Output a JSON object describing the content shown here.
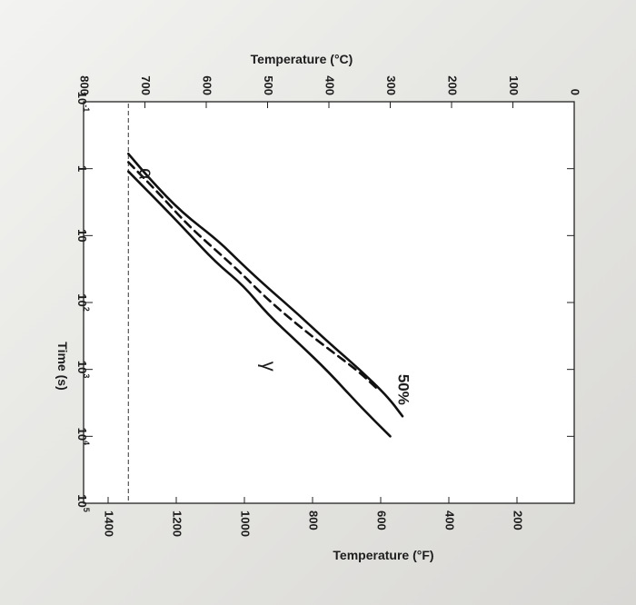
{
  "chart_data": {
    "type": "line",
    "title": "",
    "orientation": "rotated-90-clockwise",
    "xlabel": "Time (s)",
    "x_scale": "log",
    "xlim": [
      0.1,
      100000
    ],
    "x_ticks": [
      {
        "value": 0.1,
        "base": "10",
        "exp": "-1"
      },
      {
        "value": 1,
        "base": "1",
        "exp": ""
      },
      {
        "value": 10,
        "base": "10",
        "exp": ""
      },
      {
        "value": 100,
        "base": "10",
        "exp": "2"
      },
      {
        "value": 1000,
        "base": "10",
        "exp": "3"
      },
      {
        "value": 10000,
        "base": "10",
        "exp": "4"
      },
      {
        "value": 100000,
        "base": "10",
        "exp": "5"
      }
    ],
    "ylabel_left": "Temperature (°C)",
    "ylim_c": [
      0,
      800
    ],
    "y_ticks_c": [
      "0",
      "100",
      "200",
      "300",
      "400",
      "500",
      "600",
      "700",
      "800"
    ],
    "ylabel_right": "Temperature (°F)",
    "y_ticks_f": [
      "200",
      "400",
      "600",
      "800",
      "1000",
      "1200",
      "1400"
    ],
    "eutectoid_temperature_c": 727,
    "region_labels": [
      "α",
      "γ"
    ],
    "annotation": "50%",
    "series": [
      {
        "style": "solid",
        "points": [
          [
            0.6,
            727
          ],
          [
            1.5,
            690
          ],
          [
            4.5,
            640
          ],
          [
            12,
            580
          ],
          [
            25,
            545
          ],
          [
            60,
            500
          ],
          [
            150,
            450
          ],
          [
            400,
            400
          ],
          [
            1000,
            350
          ],
          [
            2500,
            305
          ],
          [
            5000,
            280
          ]
        ]
      },
      {
        "style": "dashed",
        "points": [
          [
            0.8,
            727
          ],
          [
            2.2,
            680
          ],
          [
            7,
            630
          ],
          [
            18,
            580
          ],
          [
            35,
            545
          ],
          [
            90,
            500
          ],
          [
            220,
            450
          ],
          [
            500,
            400
          ],
          [
            1100,
            350
          ],
          [
            2000,
            320
          ]
        ]
      },
      {
        "style": "solid",
        "points": [
          [
            1.1,
            727
          ],
          [
            3,
            680
          ],
          [
            9,
            630
          ],
          [
            25,
            585
          ],
          [
            55,
            540
          ],
          [
            150,
            500
          ],
          [
            400,
            450
          ],
          [
            1100,
            400
          ],
          [
            3500,
            350
          ],
          [
            10000,
            300
          ]
        ]
      }
    ]
  }
}
